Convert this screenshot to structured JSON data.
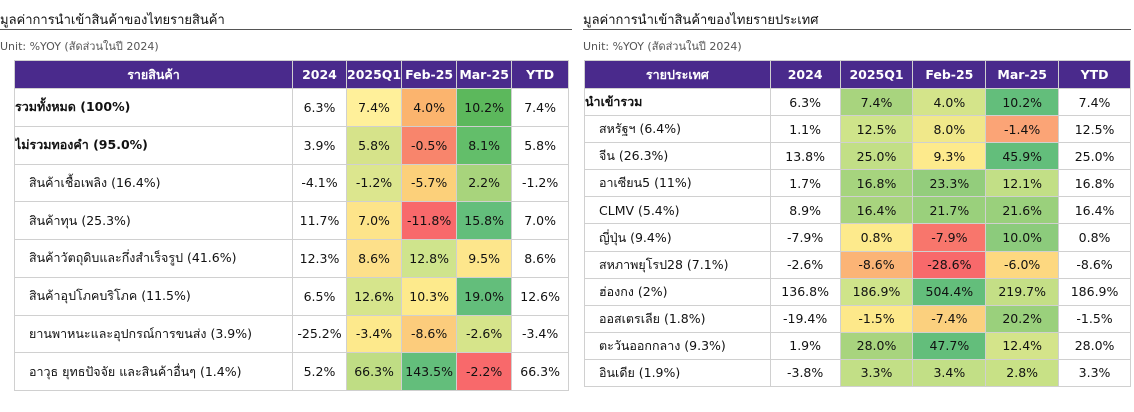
{
  "left": {
    "title": "มูลค่าการนำเข้าสินค้าของไทยรายสินค้า",
    "unit": "Unit: %YOY (สัดส่วนในปี 2024)",
    "headers": [
      "รายสินค้า",
      "2024",
      "2025Q1",
      "Feb-25",
      "Mar-25",
      "YTD"
    ],
    "rows": [
      {
        "name": "รวมทั้งหมด (100%)",
        "bold": true,
        "values": [
          "6.3%",
          "7.4%",
          "4.0%",
          "10.2%",
          "7.4%"
        ],
        "colors": [
          "",
          "#fff09a",
          "#fbb46e",
          "#5cb85c",
          ""
        ]
      },
      {
        "name": "ไม่รวมทองคำ (95.0%)",
        "bold": true,
        "values": [
          "3.9%",
          "5.8%",
          "-0.5%",
          "8.1%",
          "5.8%"
        ],
        "colors": [
          "",
          "#d6e38a",
          "#f8856c",
          "#63be6a",
          ""
        ]
      },
      {
        "name": "สินค้าเชื้อเพลิง (16.4%)",
        "bold": false,
        "values": [
          "-4.1%",
          "-1.2%",
          "-5.7%",
          "2.2%",
          "-1.2%"
        ],
        "colors": [
          "",
          "#dce68e",
          "#fcd07a",
          "#a8d47c",
          ""
        ]
      },
      {
        "name": "สินค้าทุน (25.3%)",
        "bold": false,
        "values": [
          "11.7%",
          "7.0%",
          "-11.8%",
          "15.8%",
          "7.0%"
        ],
        "colors": [
          "",
          "#fde48a",
          "#f8696b",
          "#63be7b",
          ""
        ]
      },
      {
        "name": "สินค้าวัตถุดิบและกึ่งสำเร็จรูป (41.6%)",
        "bold": false,
        "values": [
          "12.3%",
          "8.6%",
          "12.8%",
          "9.5%",
          "8.6%"
        ],
        "colors": [
          "",
          "#fde08a",
          "#cfe48c",
          "#fde68c",
          ""
        ]
      },
      {
        "name": "สินค้าอุปโภคบริโภค (11.5%)",
        "bold": false,
        "values": [
          "6.5%",
          "12.6%",
          "10.3%",
          "19.0%",
          "12.6%"
        ],
        "colors": [
          "",
          "#d6e58c",
          "#fdea8c",
          "#63be7b",
          ""
        ]
      },
      {
        "name": "ยานพาหนะและอุปกรณ์การขนส่ง (3.9%)",
        "bold": false,
        "values": [
          "-25.2%",
          "-3.4%",
          "-8.6%",
          "-2.6%",
          "-3.4%"
        ],
        "colors": [
          "",
          "#fde98c",
          "#fccc7c",
          "#d6e48a",
          ""
        ]
      },
      {
        "name": "อาวุธ ยุทธปัจจัย และสินค้าอื่นๆ (1.4%)",
        "bold": false,
        "values": [
          "5.2%",
          "66.3%",
          "143.5%",
          "-2.2%",
          "66.3%"
        ],
        "colors": [
          "",
          "#bfdd84",
          "#63be7b",
          "#f8696b",
          ""
        ]
      }
    ]
  },
  "right": {
    "title": "มูลค่าการนำเข้าสินค้าของไทยรายประเทศ",
    "unit": "Unit: %YOY (สัดส่วนในปี 2024)",
    "headers": [
      "รายประเทศ",
      "2024",
      "2025Q1",
      "Feb-25",
      "Mar-25",
      "YTD"
    ],
    "rows": [
      {
        "name": "นำเข้ารวม",
        "bold": true,
        "values": [
          "6.3%",
          "7.4%",
          "4.0%",
          "10.2%",
          "7.4%"
        ],
        "colors": [
          "",
          "#a8d47e",
          "#d4e48a",
          "#63be7b",
          ""
        ]
      },
      {
        "name": "สหรัฐฯ (6.4%)",
        "bold": false,
        "values": [
          "1.1%",
          "12.5%",
          "8.0%",
          "-1.4%",
          "12.5%"
        ],
        "colors": [
          "",
          "#cfe48a",
          "#f0e88a",
          "#fba476",
          ""
        ]
      },
      {
        "name": "จีน (26.3%)",
        "bold": false,
        "values": [
          "13.8%",
          "25.0%",
          "9.3%",
          "45.9%",
          "25.0%"
        ],
        "colors": [
          "",
          "#c2df86",
          "#fdea8c",
          "#63be7b",
          ""
        ]
      },
      {
        "name": "อาเซียน5 (11%)",
        "bold": false,
        "values": [
          "1.7%",
          "16.8%",
          "23.3%",
          "12.1%",
          "16.8%"
        ],
        "colors": [
          "",
          "#a6d47e",
          "#93cd7c",
          "#c2df86",
          ""
        ]
      },
      {
        "name": "CLMV (5.4%)",
        "bold": false,
        "values": [
          "8.9%",
          "16.4%",
          "21.7%",
          "21.6%",
          "16.4%"
        ],
        "colors": [
          "",
          "#a8d47e",
          "#9ad07c",
          "#9ad07c",
          ""
        ]
      },
      {
        "name": "ญี่ปุ่น (9.4%)",
        "bold": false,
        "values": [
          "-7.9%",
          "0.8%",
          "-7.9%",
          "10.0%",
          "0.8%"
        ],
        "colors": [
          "",
          "#fdea8c",
          "#f8766c",
          "#8ccb7c",
          ""
        ]
      },
      {
        "name": "สหภาพยุโรป28 (7.1%)",
        "bold": false,
        "values": [
          "-2.6%",
          "-8.6%",
          "-28.6%",
          "-6.0%",
          "-8.6%"
        ],
        "colors": [
          "",
          "#fbb476",
          "#f8696b",
          "#fdd880",
          ""
        ]
      },
      {
        "name": "ฮ่องกง (2%)",
        "bold": false,
        "values": [
          "136.8%",
          "186.9%",
          "504.4%",
          "219.7%",
          "186.9%"
        ],
        "colors": [
          "",
          "#cfe48a",
          "#63be7b",
          "#c4df86",
          ""
        ]
      },
      {
        "name": "ออสเตรเลีย (1.8%)",
        "bold": false,
        "values": [
          "-19.4%",
          "-1.5%",
          "-7.4%",
          "20.2%",
          "-1.5%"
        ],
        "colors": [
          "",
          "#fde88a",
          "#fbd07e",
          "#9ad07c",
          ""
        ]
      },
      {
        "name": "ตะวันออกกลาง (9.3%)",
        "bold": false,
        "values": [
          "1.9%",
          "28.0%",
          "47.7%",
          "12.4%",
          "28.0%"
        ],
        "colors": [
          "",
          "#a8d47e",
          "#63be7b",
          "#d4e48a",
          ""
        ]
      },
      {
        "name": "อินเดีย (1.9%)",
        "bold": false,
        "values": [
          "-3.8%",
          "3.3%",
          "3.4%",
          "2.8%",
          "3.3%"
        ],
        "colors": [
          "",
          "#c2df86",
          "#c2df86",
          "#c8e186",
          ""
        ]
      }
    ]
  }
}
